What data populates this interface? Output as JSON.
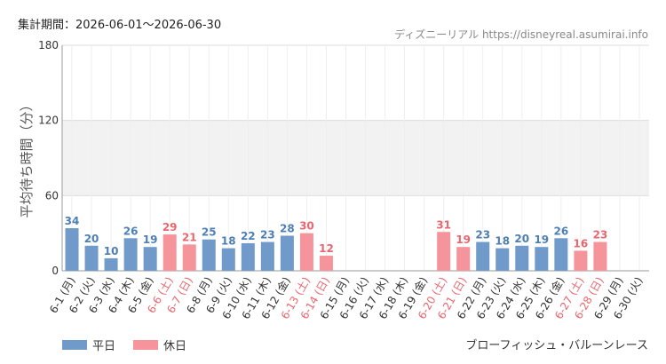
{
  "header": {
    "period": "集計期間：2026-06-01～2026-06-30",
    "source": "ディズニーリアル https://disneyreal.asumirai.info"
  },
  "footer": {
    "attraction": "ブローフィッシュ・バルーンレース"
  },
  "chart_data": {
    "type": "bar",
    "ylabel": "平均待ち時間（分）",
    "ylim": [
      0,
      180
    ],
    "yticks": [
      0,
      60,
      120,
      180
    ],
    "shaded_band": [
      60,
      120
    ],
    "legend": [
      {
        "name": "平日",
        "color": "#6f9ac9"
      },
      {
        "name": "休日",
        "color": "#f5949a"
      }
    ],
    "label_colors": {
      "weekday": "#4d7fb5",
      "holiday": "#e8676f",
      "axis_weekday": "#333333",
      "axis_holiday": "#e8676f"
    },
    "bars": [
      {
        "category": "6-1 (月)",
        "value": 34,
        "type": "weekday"
      },
      {
        "category": "6-2 (火)",
        "value": 20,
        "type": "weekday"
      },
      {
        "category": "6-3 (水)",
        "value": 10,
        "type": "weekday"
      },
      {
        "category": "6-4 (木)",
        "value": 26,
        "type": "weekday"
      },
      {
        "category": "6-5 (金)",
        "value": 19,
        "type": "weekday"
      },
      {
        "category": "6-6 (土)",
        "value": 29,
        "type": "holiday"
      },
      {
        "category": "6-7 (日)",
        "value": 21,
        "type": "holiday"
      },
      {
        "category": "6-8 (月)",
        "value": 25,
        "type": "weekday"
      },
      {
        "category": "6-9 (火)",
        "value": 18,
        "type": "weekday"
      },
      {
        "category": "6-10 (水)",
        "value": 22,
        "type": "weekday"
      },
      {
        "category": "6-11 (木)",
        "value": 23,
        "type": "weekday"
      },
      {
        "category": "6-12 (金)",
        "value": 28,
        "type": "weekday"
      },
      {
        "category": "6-13 (土)",
        "value": 30,
        "type": "holiday"
      },
      {
        "category": "6-14 (日)",
        "value": 12,
        "type": "holiday"
      },
      {
        "category": "6-15 (月)",
        "value": null,
        "type": "weekday"
      },
      {
        "category": "6-16 (火)",
        "value": null,
        "type": "weekday"
      },
      {
        "category": "6-17 (水)",
        "value": null,
        "type": "weekday"
      },
      {
        "category": "6-18 (木)",
        "value": null,
        "type": "weekday"
      },
      {
        "category": "6-19 (金)",
        "value": null,
        "type": "weekday"
      },
      {
        "category": "6-20 (土)",
        "value": 31,
        "type": "holiday"
      },
      {
        "category": "6-21 (日)",
        "value": 19,
        "type": "holiday"
      },
      {
        "category": "6-22 (月)",
        "value": 23,
        "type": "weekday"
      },
      {
        "category": "6-23 (火)",
        "value": 18,
        "type": "weekday"
      },
      {
        "category": "6-24 (水)",
        "value": 20,
        "type": "weekday"
      },
      {
        "category": "6-25 (木)",
        "value": 19,
        "type": "weekday"
      },
      {
        "category": "6-26 (金)",
        "value": 26,
        "type": "weekday"
      },
      {
        "category": "6-27 (土)",
        "value": 16,
        "type": "holiday"
      },
      {
        "category": "6-28 (日)",
        "value": 23,
        "type": "holiday"
      },
      {
        "category": "6-29 (月)",
        "value": null,
        "type": "weekday"
      },
      {
        "category": "6-30 (火)",
        "value": null,
        "type": "weekday"
      }
    ]
  }
}
